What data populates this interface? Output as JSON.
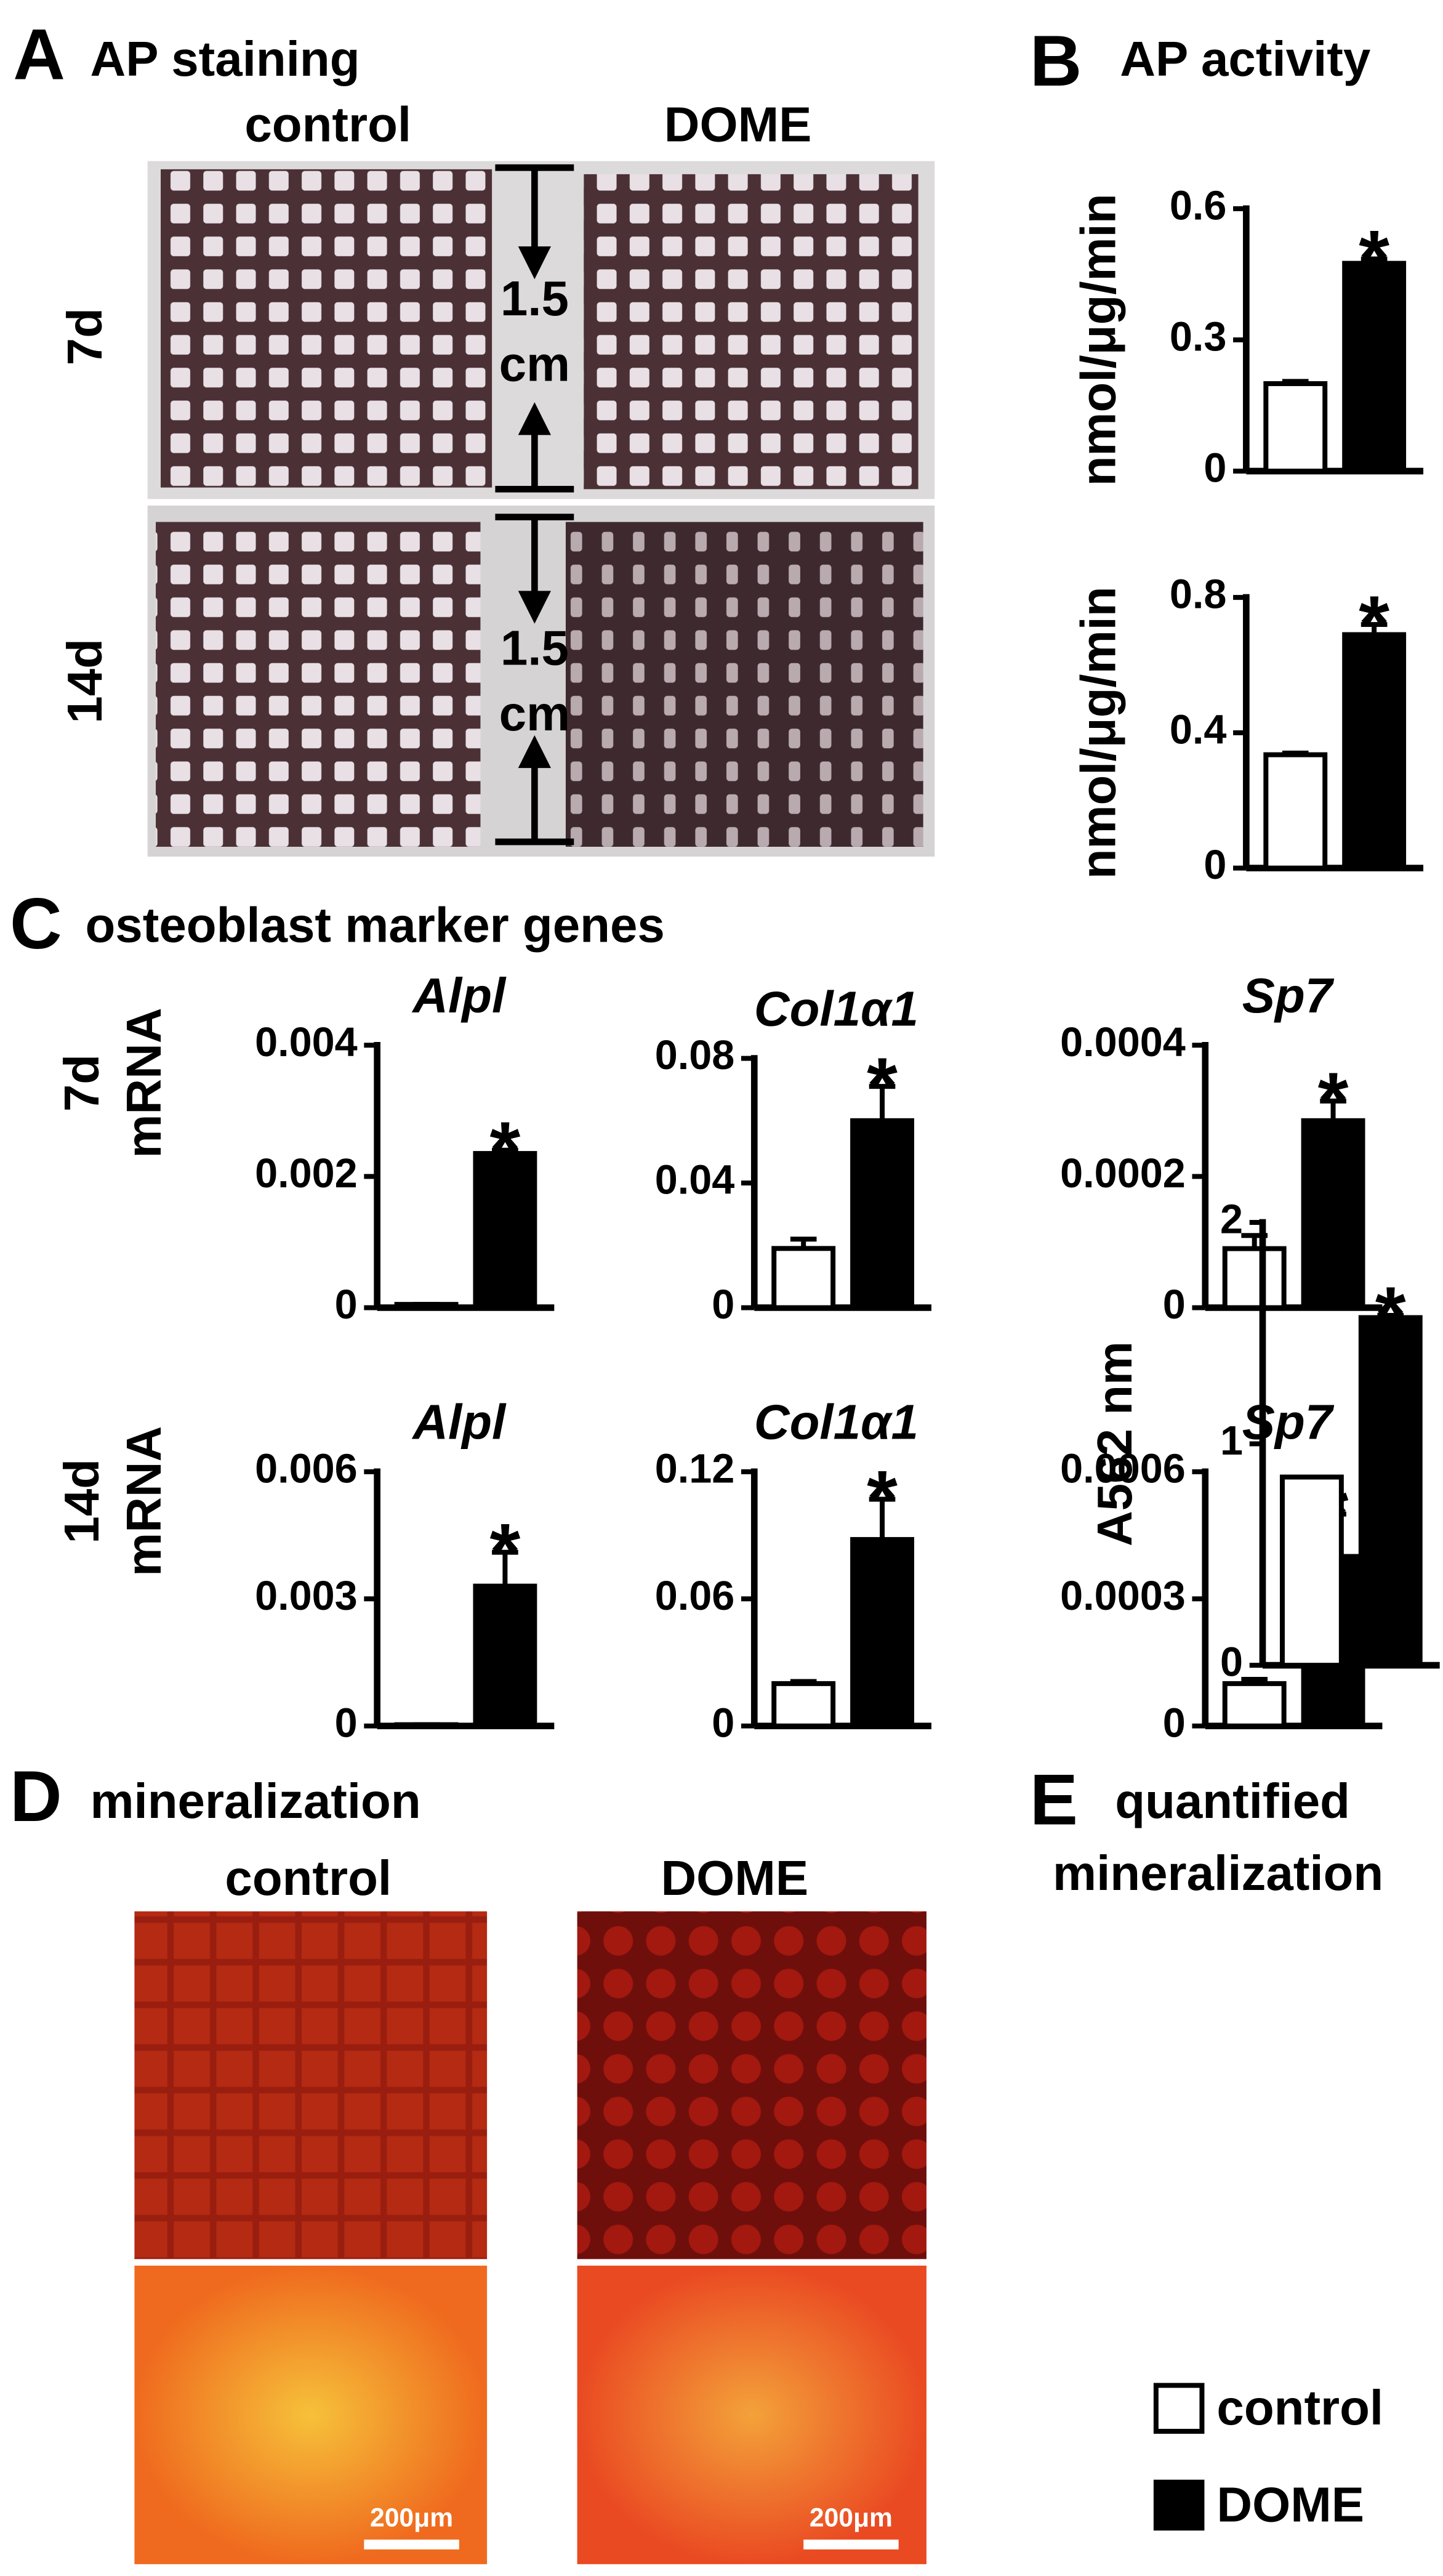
{
  "panel_labels": [
    "A",
    "B",
    "C",
    "D",
    "E"
  ],
  "panel_A": {
    "title": "AP staining",
    "columns": [
      "control",
      "DOME"
    ],
    "rows": [
      "7d",
      "14d"
    ],
    "scale_value": "1.5",
    "scale_unit": "cm"
  },
  "panel_B": {
    "title": "AP activity"
  },
  "panel_C": {
    "title": "osteoblast marker genes",
    "rows": [
      "7d",
      "14d"
    ],
    "row_ylabel": "mRNA"
  },
  "panel_D": {
    "title": "mineralization",
    "columns": [
      "control",
      "DOME"
    ],
    "scale_bar": "200μm"
  },
  "panel_E": {
    "title_lines": [
      "quantified",
      "mineralization"
    ]
  },
  "legend": [
    {
      "name": "control",
      "color": "#ffffff"
    },
    {
      "name": "DOME",
      "color": "#000000"
    }
  ],
  "chart_data": [
    {
      "type": "bar",
      "ylabel": "nmol/μg/min",
      "categories": [
        null,
        null
      ],
      "values": [
        0.2,
        0.475
      ],
      "errors": [
        0.005,
        0.01
      ],
      "significance": "*",
      "ylim": [
        0,
        0.6
      ],
      "yticks": [
        0,
        0.3,
        0.6
      ]
    },
    {
      "type": "bar",
      "ylabel": "nmol/μg/min",
      "categories": [
        null,
        null
      ],
      "values": [
        0.335,
        0.69
      ],
      "errors": [
        0.005,
        0.03
      ],
      "significance": "*",
      "ylim": [
        0,
        0.8
      ],
      "yticks": [
        0,
        0.4,
        0.8
      ]
    },
    {
      "type": "bar",
      "title": "Alpl",
      "categories": [
        null,
        null
      ],
      "values": [
        5e-05,
        0.00235
      ],
      "errors": [
        0,
        5e-05
      ],
      "significance": "*",
      "ylim": [
        0,
        0.004
      ],
      "yticks": [
        0,
        0.002,
        0.004
      ]
    },
    {
      "type": "bar",
      "title": "Col1α1",
      "categories": [
        null,
        null
      ],
      "values": [
        0.019,
        0.06
      ],
      "errors": [
        0.003,
        0.011
      ],
      "significance": "*",
      "ylim": [
        0,
        0.08
      ],
      "yticks": [
        0,
        0.04,
        0.08
      ]
    },
    {
      "type": "bar",
      "title": "Sp7",
      "categories": [
        null,
        null
      ],
      "values": [
        9e-05,
        0.000285
      ],
      "errors": [
        2e-05,
        3e-05
      ],
      "significance": "*",
      "ylim": [
        0,
        0.0004
      ],
      "yticks": [
        0,
        0.0002,
        0.0004
      ]
    },
    {
      "type": "bar",
      "title": "Alpl",
      "categories": [
        null,
        null
      ],
      "values": [
        3e-05,
        0.0033
      ],
      "errors": [
        0,
        0.0008
      ],
      "significance": "*",
      "ylim": [
        0,
        0.006
      ],
      "yticks": [
        0,
        0.003,
        0.006
      ]
    },
    {
      "type": "bar",
      "title": "Col1α1",
      "categories": [
        null,
        null
      ],
      "values": [
        0.02,
        0.088
      ],
      "errors": [
        0.001,
        0.019
      ],
      "significance": "*",
      "ylim": [
        0,
        0.12
      ],
      "yticks": [
        0,
        0.06,
        0.12
      ]
    },
    {
      "type": "bar",
      "title": "Sp7",
      "categories": [
        null,
        null
      ],
      "values": [
        0.0001,
        0.0004
      ],
      "errors": [
        1e-05,
        0.0001
      ],
      "significance": "*",
      "ylim": [
        0,
        0.0006
      ],
      "yticks": [
        0,
        0.0003,
        0.0006
      ]
    },
    {
      "type": "bar",
      "ylabel": "A562 nm",
      "categories": [
        null,
        null
      ],
      "values": [
        0.85,
        1.57
      ],
      "errors": [
        0,
        0.01
      ],
      "significance": "*",
      "ylim": [
        0,
        2
      ],
      "yticks": [
        0,
        1,
        2
      ]
    }
  ]
}
